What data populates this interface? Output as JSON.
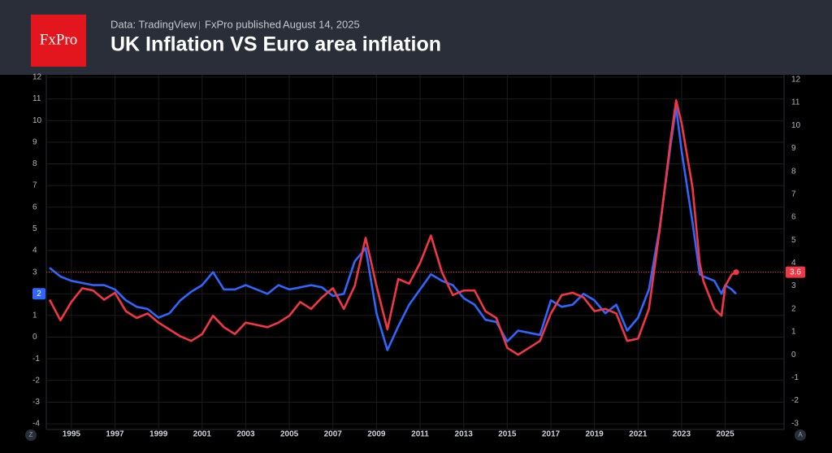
{
  "header": {
    "logo": "FxPro",
    "source": "Data: TradingView",
    "publisher": "FxPro published",
    "date": "August 14, 2025"
  },
  "controls": {
    "left": "Z",
    "right": "A"
  },
  "chart_data": {
    "type": "line",
    "title": "UK Inflation VS Euro area inflation",
    "x": [
      1994,
      1994.5,
      1995,
      1995.5,
      1996,
      1996.5,
      1997,
      1997.5,
      1998,
      1998.5,
      1999,
      1999.5,
      2000,
      2000.5,
      2001,
      2001.5,
      2002,
      2002.5,
      2003,
      2003.5,
      2004,
      2004.5,
      2005,
      2005.5,
      2006,
      2006.5,
      2007,
      2007.5,
      2008,
      2008.5,
      2009,
      2009.5,
      2010,
      2010.5,
      2011,
      2011.5,
      2012,
      2012.5,
      2013,
      2013.5,
      2014,
      2014.5,
      2015,
      2015.5,
      2016,
      2016.5,
      2017,
      2017.5,
      2018,
      2018.5,
      2019,
      2019.5,
      2020,
      2020.5,
      2021,
      2021.5,
      2022,
      2022.5,
      2022.75,
      2023,
      2023.5,
      2023.83,
      2024,
      2024.5,
      2024.83,
      2025,
      2025.3,
      2025.5
    ],
    "series": [
      {
        "color": "#2f66ff",
        "axis": "y",
        "values": [
          3.2,
          2.8,
          2.6,
          2.5,
          2.4,
          2.4,
          2.2,
          1.7,
          1.4,
          1.3,
          0.9,
          1.1,
          1.7,
          2.1,
          2.4,
          3.0,
          2.2,
          2.2,
          2.4,
          2.2,
          2.0,
          2.4,
          2.2,
          2.3,
          2.4,
          2.3,
          1.9,
          2.0,
          3.5,
          4.1,
          1.1,
          -0.6,
          0.5,
          1.5,
          2.2,
          2.9,
          2.6,
          2.4,
          1.8,
          1.5,
          0.8,
          0.7,
          -0.2,
          0.3,
          0.2,
          0.1,
          1.7,
          1.4,
          1.5,
          2.0,
          1.7,
          1.1,
          1.5,
          0.3,
          0.9,
          2.2,
          5.1,
          8.9,
          10.6,
          8.6,
          5.3,
          2.9,
          2.8,
          2.6,
          2.0,
          2.4,
          2.2,
          2
        ]
      },
      {
        "color": "#f23645",
        "axis": "y2",
        "values": [
          2.4,
          1.5,
          2.3,
          2.9,
          2.8,
          2.4,
          2.7,
          1.9,
          1.6,
          1.8,
          1.4,
          1.1,
          0.8,
          0.6,
          0.9,
          1.7,
          1.2,
          0.9,
          1.4,
          1.3,
          1.2,
          1.4,
          1.7,
          2.3,
          2.0,
          2.5,
          2.9,
          2.0,
          3.0,
          5.1,
          3.0,
          1.1,
          3.3,
          3.1,
          4.0,
          5.2,
          3.6,
          2.6,
          2.8,
          2.8,
          1.9,
          1.6,
          0.3,
          0.0,
          0.3,
          0.6,
          1.8,
          2.6,
          2.7,
          2.5,
          1.9,
          2.0,
          1.8,
          0.6,
          0.7,
          2.0,
          5.5,
          9.4,
          11.1,
          10.1,
          7.3,
          4.0,
          3.2,
          2.0,
          1.7,
          3.0,
          3.5,
          3.6
        ]
      }
    ],
    "xlim": [
      1993.85,
      2027.7
    ],
    "xticks": [
      1995,
      1997,
      1999,
      2001,
      2003,
      2005,
      2007,
      2009,
      2011,
      2013,
      2015,
      2017,
      2019,
      2021,
      2023,
      2025
    ],
    "ylim": [
      -4.26,
      12.11
    ],
    "yticks": [
      -4,
      -3,
      -2,
      -1,
      0,
      1,
      2,
      3,
      4,
      5,
      6,
      7,
      8,
      9,
      10,
      11,
      12
    ],
    "y2lim": [
      -3.26,
      12.21
    ],
    "y2ticks": [
      -3,
      -2,
      -1,
      0,
      1,
      2,
      3,
      4,
      5,
      6,
      7,
      8,
      9,
      10,
      11,
      12
    ],
    "grid": true
  }
}
